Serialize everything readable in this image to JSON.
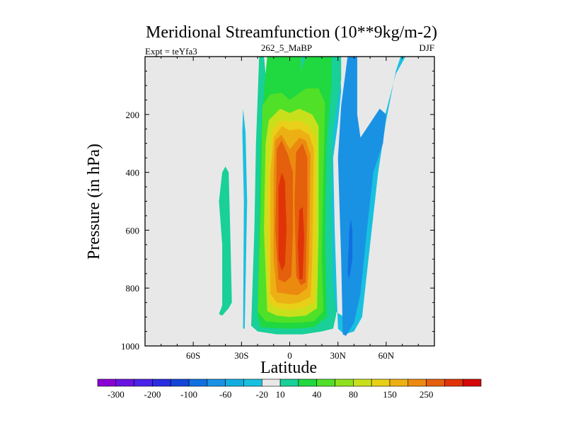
{
  "chart_data": {
    "type": "contour",
    "title": "Meridional Streamfunction (10**9kg/m-2)",
    "subtitle_left": "Expt = teYfa3",
    "subtitle_center": "262_5_MaBP",
    "subtitle_right": "DJF",
    "xlabel": "Latitude",
    "ylabel": "Pressure (in hPa)",
    "xlim": [
      -90,
      90
    ],
    "ylim": [
      1000,
      0
    ],
    "x_ticks": [
      {
        "value": -60,
        "label": "60S"
      },
      {
        "value": -30,
        "label": "30S"
      },
      {
        "value": 0,
        "label": "0"
      },
      {
        "value": 30,
        "label": "30N"
      },
      {
        "value": 60,
        "label": "60N"
      }
    ],
    "y_ticks": [
      {
        "value": 200,
        "label": "200"
      },
      {
        "value": 400,
        "label": "400"
      },
      {
        "value": 600,
        "label": "600"
      },
      {
        "value": 800,
        "label": "800"
      },
      {
        "value": 1000,
        "label": "1000"
      }
    ],
    "colorbar": {
      "colors": [
        "#8a00d4",
        "#6a12e0",
        "#4a22e8",
        "#2a2ce0",
        "#1346d8",
        "#1070e0",
        "#1a92e4",
        "#10aee0",
        "#18c0e0",
        "#e8e8e8",
        "#18d098",
        "#20d840",
        "#50e028",
        "#90e020",
        "#c8e01c",
        "#e8d018",
        "#ecb014",
        "#ec8a10",
        "#e4600c",
        "#e03408",
        "#d40808"
      ],
      "labels": [
        "-300",
        "-200",
        "-100",
        "-60",
        "-20",
        "10",
        "40",
        "80",
        "150",
        "250"
      ],
      "label_after_box": [
        1,
        3,
        5,
        7,
        9,
        10,
        12,
        14,
        16,
        18
      ]
    },
    "contour_regions": [
      {
        "name": "south-green-cell",
        "level": 10,
        "color": "#18d098",
        "points": [
          [
            -44,
            890
          ],
          [
            -42,
            860
          ],
          [
            -42,
            650
          ],
          [
            -44,
            500
          ],
          [
            -42,
            400
          ],
          [
            -40,
            380
          ],
          [
            -38,
            400
          ],
          [
            -37,
            600
          ],
          [
            -36,
            850
          ],
          [
            -38,
            870
          ],
          [
            -42,
            895
          ]
        ]
      },
      {
        "name": "south-blue-sliver",
        "level": -20,
        "color": "#18c0e0",
        "points": [
          [
            -29,
            940
          ],
          [
            -28.5,
            500
          ],
          [
            -29.5,
            260
          ],
          [
            -29,
            180
          ],
          [
            -27.5,
            260
          ],
          [
            -26.5,
            500
          ],
          [
            -28,
            940
          ]
        ]
      },
      {
        "name": "north-cyan-cell",
        "level": -20,
        "color": "#18c0e0",
        "points": [
          [
            24,
            0
          ],
          [
            31,
            0
          ],
          [
            32,
            120
          ],
          [
            30,
            230
          ],
          [
            27,
            350
          ],
          [
            28,
            600
          ],
          [
            30,
            940
          ],
          [
            34,
            960
          ],
          [
            40,
            950
          ],
          [
            45,
            900
          ],
          [
            49,
            700
          ],
          [
            55,
            400
          ],
          [
            60,
            220
          ],
          [
            66,
            50
          ],
          [
            69,
            0
          ],
          [
            72,
            0
          ],
          [
            66,
            60
          ],
          [
            58,
            230
          ],
          [
            50,
            420
          ],
          [
            45,
            700
          ],
          [
            40,
            870
          ],
          [
            34,
            900
          ],
          [
            28,
            880
          ],
          [
            25,
            600
          ],
          [
            24,
            300
          ],
          [
            23,
            150
          ]
        ]
      },
      {
        "name": "north-blue-cell",
        "level": -60,
        "color": "#1a92e4",
        "points": [
          [
            33,
            960
          ],
          [
            32,
            700
          ],
          [
            30,
            350
          ],
          [
            32,
            170
          ],
          [
            36,
            0
          ],
          [
            42,
            0
          ],
          [
            42,
            200
          ],
          [
            44,
            280
          ],
          [
            50,
            230
          ],
          [
            56,
            180
          ],
          [
            60,
            200
          ],
          [
            58,
            300
          ],
          [
            52,
            400
          ],
          [
            48,
            600
          ],
          [
            44,
            820
          ],
          [
            40,
            920
          ],
          [
            35,
            965
          ]
        ]
      },
      {
        "name": "north-blue-core",
        "level": -100,
        "color": "#1070e0",
        "points": [
          [
            36,
            750
          ],
          [
            37,
            600
          ],
          [
            38,
            560
          ],
          [
            39,
            600
          ],
          [
            39,
            700
          ],
          [
            37,
            770
          ]
        ]
      },
      {
        "name": "core-level-10",
        "level": 10,
        "color": "#18d098",
        "points": [
          [
            -19,
            0
          ],
          [
            -16,
            0
          ],
          [
            -15,
            60
          ],
          [
            -12,
            100
          ],
          [
            5,
            100
          ],
          [
            7,
            60
          ],
          [
            7,
            0
          ],
          [
            32,
            0
          ],
          [
            32,
            80
          ],
          [
            27,
            260
          ],
          [
            26,
            500
          ],
          [
            27,
            780
          ],
          [
            29,
            890
          ],
          [
            27,
            940
          ],
          [
            20,
            950
          ],
          [
            8,
            960
          ],
          [
            -8,
            960
          ],
          [
            -20,
            950
          ],
          [
            -24,
            930
          ],
          [
            -22,
            600
          ],
          [
            -21,
            300
          ]
        ]
      },
      {
        "name": "core-level-40",
        "level": 40,
        "color": "#20d840",
        "points": [
          [
            -14,
            0
          ],
          [
            7,
            0
          ],
          [
            7,
            50
          ],
          [
            10,
            0
          ],
          [
            26,
            0
          ],
          [
            26,
            100
          ],
          [
            23,
            300
          ],
          [
            22,
            600
          ],
          [
            23,
            900
          ],
          [
            15,
            935
          ],
          [
            5,
            940
          ],
          [
            -5,
            940
          ],
          [
            -18,
            935
          ],
          [
            -20,
            900
          ],
          [
            -18,
            300
          ],
          [
            -16,
            120
          ]
        ]
      },
      {
        "name": "core-level-80",
        "level": 80,
        "color": "#50e028",
        "points": [
          [
            -17,
            170
          ],
          [
            -12,
            130
          ],
          [
            -5,
            125
          ],
          [
            0,
            150
          ],
          [
            5,
            130
          ],
          [
            10,
            110
          ],
          [
            18,
            110
          ],
          [
            22,
            160
          ],
          [
            21,
            400
          ],
          [
            20,
            700
          ],
          [
            21,
            880
          ],
          [
            15,
            915
          ],
          [
            5,
            920
          ],
          [
            -5,
            920
          ],
          [
            -15,
            915
          ],
          [
            -20,
            880
          ],
          [
            -18,
            500
          ]
        ]
      },
      {
        "name": "core-level-150",
        "level": 150,
        "color": "#c8e01c",
        "points": [
          [
            -13,
            220
          ],
          [
            -6,
            180
          ],
          [
            0,
            195
          ],
          [
            6,
            180
          ],
          [
            14,
            200
          ],
          [
            18,
            240
          ],
          [
            18,
            600
          ],
          [
            17,
            870
          ],
          [
            10,
            895
          ],
          [
            0,
            900
          ],
          [
            -8,
            895
          ],
          [
            -14,
            880
          ],
          [
            -16,
            600
          ],
          [
            -15,
            300
          ]
        ]
      },
      {
        "name": "core-level-200",
        "level": 200,
        "color": "#e8d018",
        "points": [
          [
            -11,
            250
          ],
          [
            -6,
            220
          ],
          [
            0,
            225
          ],
          [
            6,
            220
          ],
          [
            12,
            240
          ],
          [
            16,
            280
          ],
          [
            16,
            600
          ],
          [
            15,
            850
          ],
          [
            8,
            870
          ],
          [
            0,
            875
          ],
          [
            -8,
            870
          ],
          [
            -13,
            850
          ],
          [
            -14,
            500
          ]
        ]
      },
      {
        "name": "core-level-250",
        "level": 250,
        "color": "#ecb014",
        "points": [
          [
            -10,
            280
          ],
          [
            -5,
            240
          ],
          [
            0,
            255
          ],
          [
            6,
            250
          ],
          [
            12,
            270
          ],
          [
            15,
            320
          ],
          [
            14,
            700
          ],
          [
            13,
            830
          ],
          [
            6,
            850
          ],
          [
            0,
            855
          ],
          [
            -8,
            850
          ],
          [
            -12,
            820
          ],
          [
            -12,
            400
          ]
        ]
      },
      {
        "name": "core-level-300",
        "level": 300,
        "color": "#ec8a10",
        "points": [
          [
            -9,
            290
          ],
          [
            -5,
            270
          ],
          [
            -2,
            300
          ],
          [
            0,
            320
          ],
          [
            3,
            300
          ],
          [
            6,
            280
          ],
          [
            10,
            290
          ],
          [
            13,
            340
          ],
          [
            12,
            700
          ],
          [
            11,
            800
          ],
          [
            5,
            825
          ],
          [
            -2,
            820
          ],
          [
            -8,
            815
          ],
          [
            -10,
            700
          ],
          [
            -10,
            400
          ]
        ]
      },
      {
        "name": "core-level-350",
        "level": 350,
        "color": "#e4600c",
        "points": [
          [
            -8,
            320
          ],
          [
            -5,
            290
          ],
          [
            -1,
            340
          ],
          [
            2,
            400
          ],
          [
            2,
            600
          ],
          [
            1,
            760
          ],
          [
            -3,
            780
          ],
          [
            -7,
            770
          ],
          [
            -9,
            600
          ]
        ]
      },
      {
        "name": "core-level-350-east",
        "level": 350,
        "color": "#e4600c",
        "points": [
          [
            4,
            330
          ],
          [
            8,
            300
          ],
          [
            11,
            350
          ],
          [
            11,
            500
          ],
          [
            10,
            780
          ],
          [
            7,
            790
          ],
          [
            4,
            760
          ],
          [
            3,
            500
          ]
        ]
      },
      {
        "name": "core-level-400-west",
        "level": 400,
        "color": "#e03408",
        "points": [
          [
            -7,
            450
          ],
          [
            -5,
            400
          ],
          [
            -3,
            430
          ],
          [
            -2,
            600
          ],
          [
            -3,
            720
          ],
          [
            -5,
            740
          ],
          [
            -7,
            700
          ]
        ]
      },
      {
        "name": "core-level-400-east",
        "level": 400,
        "color": "#e03408",
        "points": [
          [
            6,
            530
          ],
          [
            8,
            520
          ],
          [
            9,
            620
          ],
          [
            8,
            770
          ],
          [
            6,
            770
          ],
          [
            5,
            650
          ]
        ]
      }
    ]
  }
}
